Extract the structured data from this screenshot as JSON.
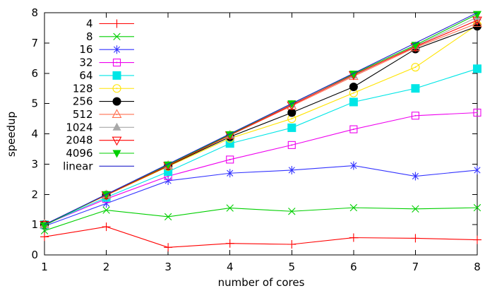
{
  "chart_data": {
    "type": "line",
    "title": "",
    "xlabel": "number of cores",
    "ylabel": "speedup",
    "xlim": [
      1,
      8
    ],
    "ylim": [
      0,
      8
    ],
    "xticks": [
      1,
      2,
      3,
      4,
      5,
      6,
      7,
      8
    ],
    "yticks": [
      0,
      1,
      2,
      3,
      4,
      5,
      6,
      7,
      8
    ],
    "grid": false,
    "legend_position": "top-left",
    "background_color": "#ffffff",
    "axis_color": "#000000",
    "x": [
      1,
      2,
      3,
      4,
      5,
      6,
      7,
      8
    ],
    "series": [
      {
        "name": "4",
        "color": "#ff0000",
        "marker": "plus",
        "values": [
          0.6,
          0.93,
          0.25,
          0.38,
          0.35,
          0.57,
          0.55,
          0.5
        ]
      },
      {
        "name": "8",
        "color": "#00cf00",
        "marker": "cross",
        "values": [
          0.8,
          1.48,
          1.26,
          1.55,
          1.44,
          1.56,
          1.52,
          1.56
        ]
      },
      {
        "name": "16",
        "color": "#3333ff",
        "marker": "asterisk",
        "values": [
          0.95,
          1.7,
          2.45,
          2.7,
          2.8,
          2.95,
          2.6,
          2.8
        ]
      },
      {
        "name": "32",
        "color": "#ee00ee",
        "marker": "square-open",
        "values": [
          1.0,
          1.85,
          2.6,
          3.15,
          3.63,
          4.15,
          4.6,
          4.7
        ]
      },
      {
        "name": "64",
        "color": "#00e6e6",
        "marker": "square-filled",
        "values": [
          1.0,
          1.9,
          2.75,
          3.68,
          4.2,
          5.05,
          5.5,
          6.15
        ]
      },
      {
        "name": "128",
        "color": "#ffe400",
        "marker": "circle-open",
        "values": [
          1.0,
          1.97,
          2.92,
          3.85,
          4.5,
          5.35,
          6.2,
          7.6
        ]
      },
      {
        "name": "256",
        "color": "#000000",
        "marker": "circle-filled",
        "values": [
          1.0,
          1.98,
          2.94,
          3.9,
          4.7,
          5.55,
          6.8,
          7.55
        ]
      },
      {
        "name": "512",
        "color": "#ff7050",
        "marker": "triangle-up-open",
        "values": [
          1.0,
          1.98,
          2.95,
          3.95,
          4.92,
          5.9,
          6.85,
          7.65
        ]
      },
      {
        "name": "1024",
        "color": "#a8a8a8",
        "marker": "triangle-up-filled",
        "values": [
          1.0,
          1.99,
          2.96,
          3.97,
          4.97,
          5.93,
          6.9,
          7.85
        ]
      },
      {
        "name": "2048",
        "color": "#ff0000",
        "marker": "triangle-down-open",
        "values": [
          1.0,
          1.98,
          2.95,
          3.96,
          4.95,
          5.95,
          6.88,
          7.75
        ]
      },
      {
        "name": "4096",
        "color": "#00cf00",
        "marker": "triangle-down-filled",
        "values": [
          0.97,
          2.0,
          2.98,
          3.98,
          5.0,
          5.98,
          6.93,
          7.95
        ]
      },
      {
        "name": "linear",
        "color": "#2222cc",
        "marker": "none",
        "values": [
          1,
          2,
          3,
          4,
          5,
          6,
          7,
          8
        ]
      }
    ]
  }
}
